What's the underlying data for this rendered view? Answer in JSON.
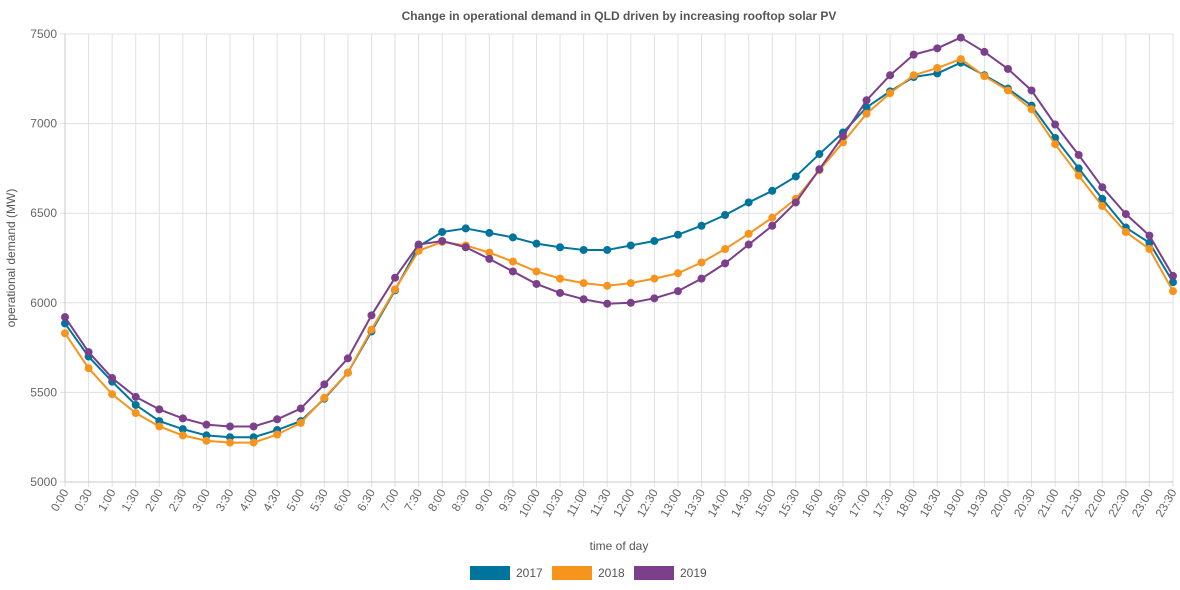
{
  "chart_data": {
    "type": "line",
    "title": "Change in operational demand in QLD driven by increasing rooftop solar PV",
    "xlabel": "time of day",
    "ylabel": "operational demand (MW)",
    "ylim": [
      5000,
      7500
    ],
    "yticks": [
      5000,
      5500,
      6000,
      6500,
      7000,
      7500
    ],
    "grid": true,
    "legend_position": "bottom",
    "x": [
      "0:00",
      "0:30",
      "1:00",
      "1:30",
      "2:00",
      "2:30",
      "3:00",
      "3:30",
      "4:00",
      "4:30",
      "5:00",
      "5:30",
      "6:00",
      "6:30",
      "7:00",
      "7:30",
      "8:00",
      "8:30",
      "9:00",
      "9:30",
      "10:00",
      "10:30",
      "11:00",
      "11:30",
      "12:00",
      "12:30",
      "13:00",
      "13:30",
      "14:00",
      "14:30",
      "15:00",
      "15:30",
      "16:00",
      "16:30",
      "17:00",
      "17:30",
      "18:00",
      "18:30",
      "19:00",
      "19:30",
      "20:00",
      "20:30",
      "21:00",
      "21:30",
      "22:00",
      "22:30",
      "23:00",
      "23:30"
    ],
    "series": [
      {
        "name": "2017",
        "color": "#00749d",
        "values": [
          5885,
          5700,
          5560,
          5430,
          5340,
          5295,
          5260,
          5250,
          5250,
          5290,
          5340,
          5465,
          5610,
          5840,
          6070,
          6315,
          6395,
          6415,
          6390,
          6365,
          6330,
          6310,
          6295,
          6295,
          6320,
          6345,
          6380,
          6430,
          6490,
          6560,
          6625,
          6705,
          6830,
          6950,
          7090,
          7180,
          7260,
          7280,
          7340,
          7270,
          7195,
          7100,
          6920,
          6750,
          6580,
          6420,
          6335,
          6115
        ]
      },
      {
        "name": "2018",
        "color": "#f7941d",
        "values": [
          5830,
          5635,
          5490,
          5385,
          5310,
          5260,
          5230,
          5220,
          5220,
          5265,
          5330,
          5470,
          5610,
          5850,
          6075,
          6290,
          6340,
          6320,
          6280,
          6230,
          6175,
          6135,
          6110,
          6095,
          6110,
          6135,
          6165,
          6225,
          6300,
          6385,
          6475,
          6580,
          6740,
          6895,
          7055,
          7170,
          7270,
          7310,
          7360,
          7265,
          7185,
          7080,
          6885,
          6710,
          6540,
          6395,
          6300,
          6065
        ]
      },
      {
        "name": "2019",
        "color": "#7b3f8b",
        "values": [
          5920,
          5725,
          5580,
          5475,
          5405,
          5355,
          5320,
          5310,
          5310,
          5350,
          5410,
          5545,
          5690,
          5930,
          6140,
          6325,
          6345,
          6310,
          6245,
          6175,
          6105,
          6055,
          6020,
          5995,
          6000,
          6025,
          6065,
          6135,
          6220,
          6325,
          6430,
          6560,
          6745,
          6930,
          7130,
          7270,
          7385,
          7420,
          7480,
          7400,
          7305,
          7185,
          6995,
          6825,
          6645,
          6495,
          6375,
          6150
        ]
      }
    ]
  }
}
